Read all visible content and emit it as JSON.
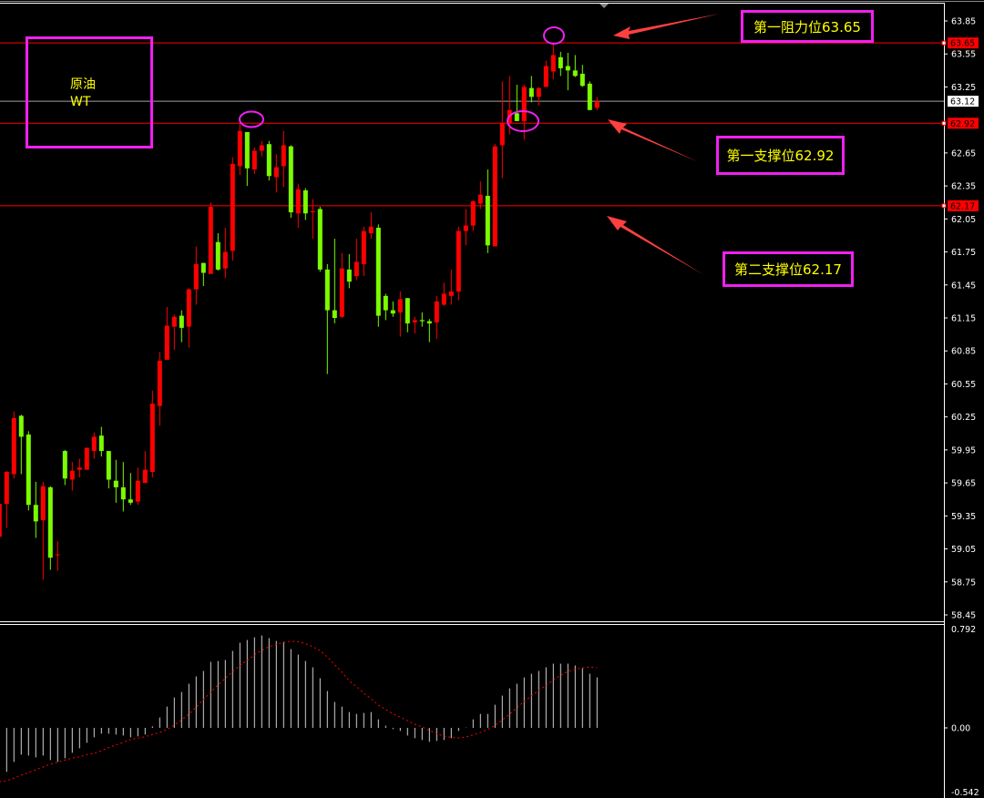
{
  "chart_data": {
    "type": "candlestick",
    "instrument_label": {
      "line1": "原油",
      "line2": "WT"
    },
    "colors": {
      "up": "#ff0000",
      "down": "#7cfc00",
      "background": "#000000",
      "level_line": "#ff0000",
      "price_line": "#a0a0a0",
      "annotation_border": "#f020f0",
      "annotation_text": "#ffff00",
      "arrow": "#ff4040",
      "histogram": "#d0d0d0",
      "signal": "#ff0000"
    },
    "price_axis": {
      "range": [
        58.45,
        63.85
      ],
      "ticks": [
        "63.85",
        "63.55",
        "63.25",
        "62.65",
        "62.35",
        "62.05",
        "61.75",
        "61.45",
        "61.15",
        "60.85",
        "60.55",
        "60.25",
        "59.95",
        "59.65",
        "59.35",
        "59.05",
        "58.75",
        "58.45"
      ]
    },
    "current_price": "63.12",
    "levels": [
      {
        "price": 63.65,
        "tag": "63.65",
        "label": "第一阻力位63.65"
      },
      {
        "price": 62.92,
        "tag": "62.92",
        "label": "第一支撑位62.92"
      },
      {
        "price": 62.17,
        "tag": "62.17",
        "label": "第二支撑位62.17"
      }
    ],
    "candles_ohlc": [
      [
        59.16,
        59.48,
        59.15,
        59.46
      ],
      [
        59.46,
        59.76,
        59.24,
        59.75
      ],
      [
        59.73,
        60.3,
        59.69,
        60.24
      ],
      [
        60.26,
        60.27,
        59.73,
        60.07
      ],
      [
        60.09,
        60.12,
        59.4,
        59.45
      ],
      [
        59.45,
        59.66,
        59.15,
        59.3
      ],
      [
        59.31,
        59.66,
        58.77,
        59.62
      ],
      [
        59.61,
        59.62,
        58.86,
        58.97
      ],
      [
        59.0,
        59.12,
        58.85,
        59.0
      ],
      [
        59.94,
        59.95,
        59.63,
        59.69
      ],
      [
        59.68,
        59.84,
        59.58,
        59.76
      ],
      [
        59.77,
        59.87,
        59.7,
        59.79
      ],
      [
        59.77,
        59.97,
        59.77,
        59.97
      ],
      [
        59.94,
        60.11,
        59.87,
        60.07
      ],
      [
        60.08,
        60.16,
        59.89,
        59.94
      ],
      [
        59.94,
        59.94,
        59.6,
        59.68
      ],
      [
        59.67,
        59.86,
        59.47,
        59.61
      ],
      [
        59.61,
        59.84,
        59.39,
        59.5
      ],
      [
        59.5,
        59.74,
        59.45,
        59.47
      ],
      [
        59.48,
        59.79,
        59.45,
        59.67
      ],
      [
        59.65,
        59.94,
        59.65,
        59.77
      ],
      [
        59.75,
        60.49,
        59.7,
        60.37
      ],
      [
        60.35,
        60.84,
        60.17,
        60.76
      ],
      [
        60.77,
        61.25,
        60.77,
        61.08
      ],
      [
        61.07,
        61.18,
        60.86,
        61.16
      ],
      [
        61.17,
        61.22,
        60.93,
        61.06
      ],
      [
        61.07,
        61.42,
        60.88,
        61.41
      ],
      [
        61.41,
        61.8,
        61.27,
        61.64
      ],
      [
        61.65,
        61.65,
        61.44,
        61.56
      ],
      [
        61.55,
        62.2,
        61.55,
        62.16
      ],
      [
        61.84,
        61.92,
        61.58,
        61.59
      ],
      [
        61.6,
        61.97,
        61.51,
        61.75
      ],
      [
        61.76,
        62.61,
        61.67,
        62.55
      ],
      [
        62.53,
        62.92,
        62.45,
        62.85
      ],
      [
        62.84,
        62.84,
        62.35,
        62.51
      ],
      [
        62.5,
        62.7,
        62.46,
        62.67
      ],
      [
        62.67,
        62.76,
        62.62,
        62.72
      ],
      [
        62.73,
        62.76,
        62.4,
        62.44
      ],
      [
        62.43,
        62.64,
        62.29,
        62.52
      ],
      [
        62.53,
        62.85,
        62.34,
        62.72
      ],
      [
        62.71,
        62.72,
        62.06,
        62.11
      ],
      [
        62.1,
        62.37,
        61.97,
        62.32
      ],
      [
        62.31,
        62.33,
        62.04,
        62.1
      ],
      [
        62.11,
        62.23,
        61.87,
        62.12
      ],
      [
        62.14,
        62.16,
        61.57,
        61.59
      ],
      [
        61.59,
        61.64,
        60.64,
        61.22
      ],
      [
        61.22,
        61.87,
        61.1,
        61.15
      ],
      [
        61.16,
        61.74,
        61.15,
        61.6
      ],
      [
        61.59,
        61.73,
        61.42,
        61.48
      ],
      [
        61.53,
        61.87,
        61.49,
        61.66
      ],
      [
        61.64,
        61.98,
        61.53,
        61.94
      ],
      [
        61.92,
        62.11,
        61.87,
        61.98
      ],
      [
        61.97,
        62.0,
        61.07,
        61.17
      ],
      [
        61.35,
        61.37,
        61.13,
        61.22
      ],
      [
        61.22,
        61.3,
        61.16,
        61.19
      ],
      [
        61.2,
        61.39,
        60.98,
        61.32
      ],
      [
        61.33,
        61.33,
        61.02,
        61.1
      ],
      [
        61.11,
        61.16,
        61.01,
        61.13
      ],
      [
        61.13,
        61.2,
        61.07,
        61.12
      ],
      [
        61.12,
        61.14,
        60.93,
        61.1
      ],
      [
        61.11,
        61.35,
        60.96,
        61.3
      ],
      [
        61.27,
        61.47,
        61.26,
        61.37
      ],
      [
        61.35,
        61.59,
        61.27,
        61.39
      ],
      [
        61.39,
        61.98,
        61.31,
        61.94
      ],
      [
        61.94,
        62.14,
        61.81,
        61.99
      ],
      [
        61.99,
        62.22,
        61.94,
        62.21
      ],
      [
        62.19,
        62.39,
        62.14,
        62.27
      ],
      [
        62.26,
        62.5,
        61.74,
        61.81
      ],
      [
        61.8,
        62.73,
        61.8,
        62.71
      ],
      [
        62.72,
        63.3,
        62.42,
        62.92
      ],
      [
        62.92,
        63.35,
        62.82,
        63.04
      ],
      [
        63.01,
        63.27,
        62.94,
        62.94
      ],
      [
        62.94,
        63.27,
        62.77,
        63.25
      ],
      [
        63.24,
        63.35,
        63.11,
        63.16
      ],
      [
        63.16,
        63.25,
        63.08,
        63.24
      ],
      [
        63.25,
        63.49,
        63.25,
        63.44
      ],
      [
        63.39,
        63.64,
        63.32,
        63.54
      ],
      [
        63.52,
        63.57,
        63.35,
        63.42
      ],
      [
        63.44,
        63.56,
        63.22,
        63.4
      ],
      [
        63.4,
        63.54,
        63.34,
        63.35
      ],
      [
        63.37,
        63.45,
        63.25,
        63.26
      ],
      [
        63.28,
        63.3,
        63.04,
        63.04
      ],
      [
        63.06,
        63.16,
        63.04,
        63.12
      ]
    ],
    "indicator": {
      "axis_ticks": [
        "0.792",
        "0.00",
        "-0.542"
      ],
      "range": [
        -0.542,
        0.792
      ],
      "histogram": [
        null,
        -0.362,
        -0.28,
        -0.22,
        -0.228,
        -0.243,
        -0.228,
        -0.265,
        -0.28,
        -0.25,
        -0.205,
        -0.168,
        -0.123,
        -0.078,
        -0.048,
        -0.048,
        -0.055,
        -0.063,
        -0.078,
        -0.07,
        -0.055,
        0.005,
        0.085,
        0.175,
        0.25,
        0.295,
        0.363,
        0.423,
        0.468,
        0.543,
        0.55,
        0.558,
        0.633,
        0.7,
        0.723,
        0.745,
        0.76,
        0.738,
        0.715,
        0.708,
        0.648,
        0.603,
        0.55,
        0.498,
        0.408,
        0.303,
        0.213,
        0.175,
        0.13,
        0.115,
        0.123,
        0.13,
        0.07,
        0.018,
        -0.01,
        -0.025,
        -0.063,
        -0.085,
        -0.1,
        -0.115,
        -0.108,
        -0.1,
        -0.085,
        -0.025,
        -0.005,
        0.07,
        0.115,
        0.115,
        0.19,
        0.265,
        0.325,
        0.363,
        0.415,
        0.445,
        0.468,
        0.498,
        0.528,
        0.528,
        0.528,
        0.513,
        0.49,
        0.445,
        0.415
      ],
      "signal": [
        -0.443,
        -0.435,
        -0.413,
        -0.388,
        -0.368,
        -0.345,
        -0.323,
        -0.298,
        -0.283,
        -0.265,
        -0.248,
        -0.238,
        -0.22,
        -0.21,
        -0.188,
        -0.163,
        -0.14,
        -0.12,
        -0.095,
        -0.085,
        -0.073,
        -0.055,
        -0.038,
        -0.015,
        0.023,
        0.065,
        0.113,
        0.17,
        0.233,
        0.293,
        0.353,
        0.408,
        0.463,
        0.513,
        0.555,
        0.6,
        0.638,
        0.668,
        0.685,
        0.703,
        0.713,
        0.71,
        0.693,
        0.668,
        0.635,
        0.583,
        0.52,
        0.46,
        0.385,
        0.34,
        0.285,
        0.24,
        0.188,
        0.15,
        0.115,
        0.088,
        0.058,
        0.03,
        0.008,
        -0.02,
        -0.048,
        -0.068,
        -0.078,
        -0.083,
        -0.075,
        -0.058,
        -0.038,
        -0.013,
        0.02,
        0.065,
        0.113,
        0.165,
        0.218,
        0.263,
        0.308,
        0.35,
        0.393,
        0.433,
        0.465,
        0.483,
        0.493,
        0.5,
        0.495
      ]
    }
  }
}
